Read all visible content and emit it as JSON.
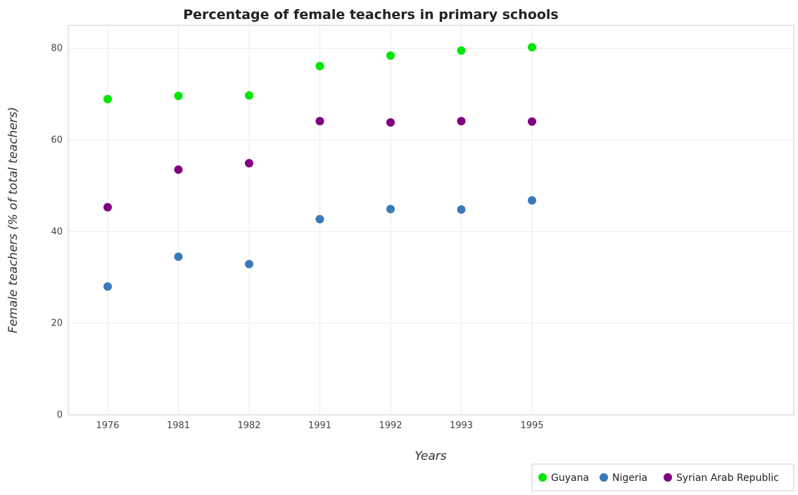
{
  "chart_data": {
    "type": "scatter",
    "title": "Percentage of female teachers in primary schools",
    "xlabel": "Years",
    "ylabel": "Female teachers (% of total teachers)",
    "categories": [
      "1976",
      "1981",
      "1982",
      "1991",
      "1992",
      "1993",
      "1995"
    ],
    "ylim": [
      0,
      85
    ],
    "yticks": [
      0,
      20,
      40,
      60,
      80
    ],
    "grid": true,
    "legend_position": "bottom-right",
    "series": [
      {
        "name": "Guyana",
        "color": "#00e600",
        "values": [
          68.9,
          69.6,
          69.7,
          76.1,
          78.4,
          79.5,
          80.2
        ]
      },
      {
        "name": "Nigeria",
        "color": "#3a7ab8",
        "values": [
          28.0,
          34.5,
          32.9,
          42.7,
          44.9,
          44.8,
          46.8
        ]
      },
      {
        "name": "Syrian Arab Republic",
        "color": "#800080",
        "values": [
          45.3,
          53.5,
          54.9,
          64.1,
          63.8,
          64.1,
          64.0
        ]
      }
    ]
  }
}
